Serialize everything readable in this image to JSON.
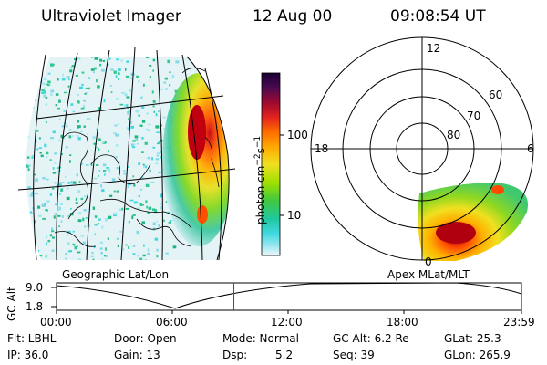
{
  "header": {
    "instrument": "Ultraviolet Imager",
    "date": "12 Aug 00",
    "time": "09:08:54 UT"
  },
  "left_panel": {
    "caption": "Geographic Lat/Lon"
  },
  "right_panel": {
    "caption": "Apex MLat/MLT",
    "mlt_labels": [
      "12",
      "18",
      "6",
      "0"
    ],
    "lat_labels": [
      "60",
      "70",
      "80"
    ]
  },
  "colorbar": {
    "unit_label": "photon cm",
    "unit_sup1": "−2",
    "unit_mid": "s",
    "unit_sup2": "−1",
    "ticks": [
      "100",
      "10"
    ],
    "colors": [
      "#1a0033",
      "#3a0f5c",
      "#6a0a3c",
      "#b00a20",
      "#e02020",
      "#ff6a00",
      "#ffa500",
      "#f0e020",
      "#a0e000",
      "#40c840",
      "#20c8a0",
      "#40d8e0",
      "#a0e8f0",
      "#e8f6f8"
    ]
  },
  "timeline": {
    "ylabel": "GC Alt",
    "yticks": [
      "9.0",
      "1.8"
    ],
    "xticks": [
      "00:00",
      "06:00",
      "12:00",
      "18:00",
      "23:59"
    ],
    "current_time": "09:08:54",
    "marker_color": "#ff0000"
  },
  "status": {
    "flt": "Flt: LBHL",
    "ip": "IP: 36.0",
    "door": "Door: Open",
    "gain": "Gain: 13",
    "mode": "Mode: Normal",
    "dsp_label": "Dsp:",
    "dsp_value": "5.2",
    "gcalt": "GC Alt: 6.2 Re",
    "seq": "Seq: 39",
    "glat": "GLat: 25.3",
    "glon": "GLon: 265.9"
  }
}
